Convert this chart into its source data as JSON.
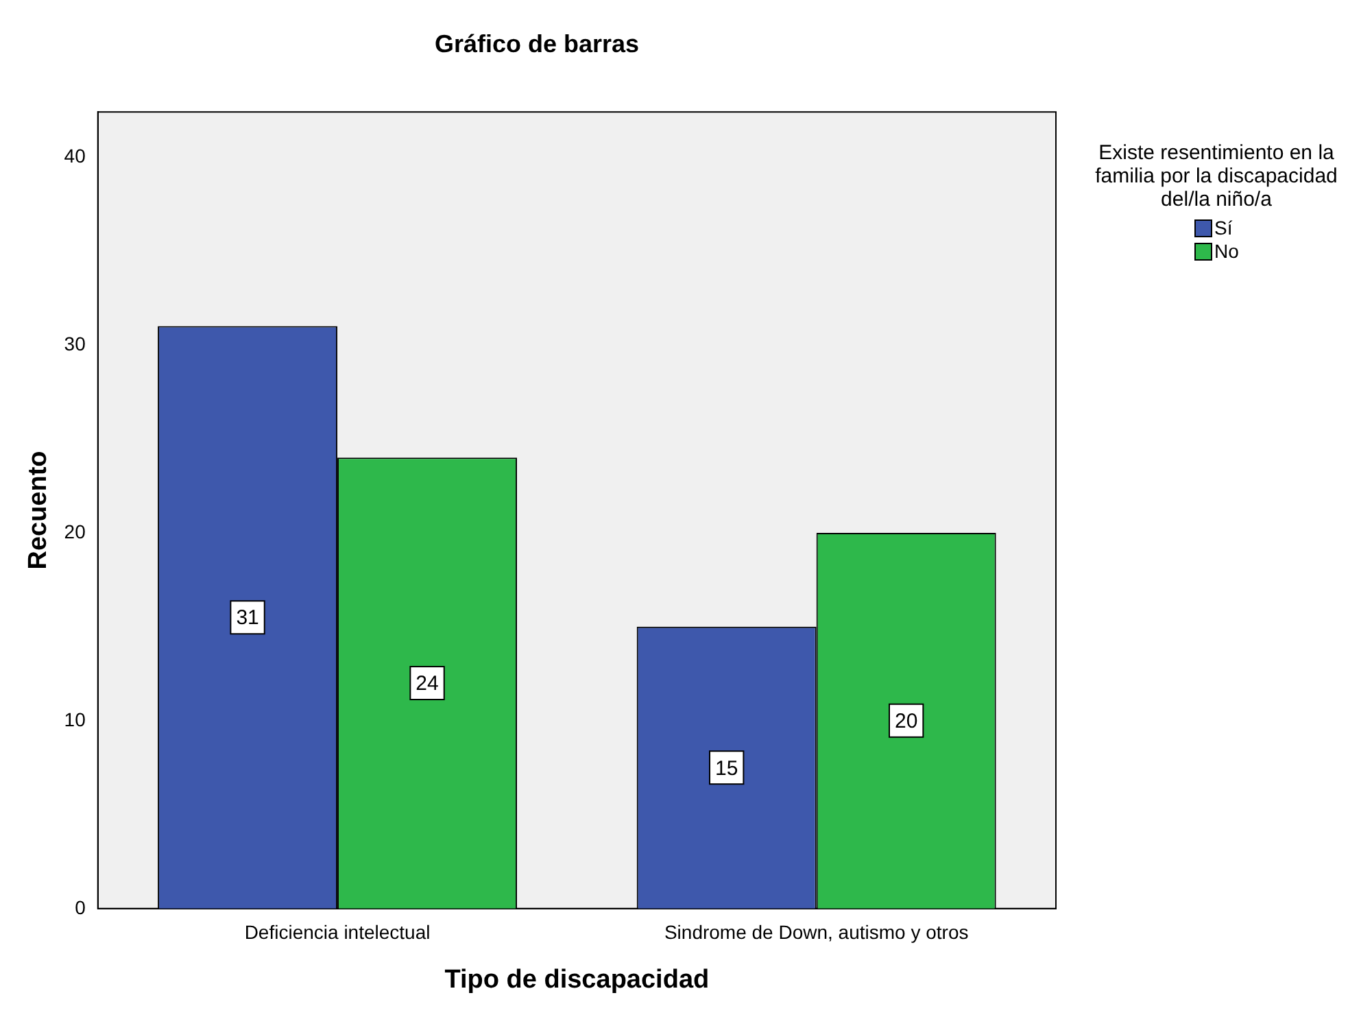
{
  "chart_data": {
    "type": "bar",
    "title": "Gráfico de barras",
    "xlabel": "Tipo de discapacidad",
    "ylabel": "Recuento",
    "legend_title": "Existe resentimiento en la familia por la discapacidad del/la niño/a",
    "categories": [
      "Deficiencia intelectual",
      "Sindrome de Down, autismo y otros"
    ],
    "series": [
      {
        "name": "Sí",
        "color": "#3e58ac",
        "values": [
          31,
          15
        ]
      },
      {
        "name": "No",
        "color": "#2eb84b",
        "values": [
          24,
          20
        ]
      }
    ],
    "ylim": [
      0,
      42.4
    ],
    "yticks": [
      0,
      10,
      20,
      30,
      40
    ],
    "grid": false,
    "legend": "top right",
    "data_labels": true
  }
}
